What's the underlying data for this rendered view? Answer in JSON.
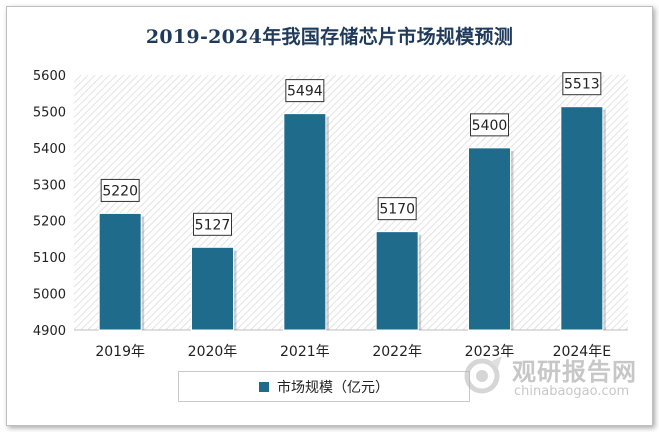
{
  "chart_data": {
    "type": "bar",
    "title": "2019-2024年我国存储芯片市场规模预测",
    "categories": [
      "2019年",
      "2020年",
      "2021年",
      "2022年",
      "2023年",
      "2024年E"
    ],
    "series": [
      {
        "name": "市场规模（亿元）",
        "values": [
          5220,
          5127,
          5494,
          5170,
          5400,
          5513
        ]
      }
    ],
    "ylim": [
      4900,
      5600
    ],
    "yticks": [
      4900,
      5000,
      5100,
      5200,
      5300,
      5400,
      5500,
      5600
    ],
    "xlabel": "",
    "ylabel": "",
    "legend": "bottom",
    "grid": false,
    "bar_color": "#1e6b8c"
  },
  "watermark": {
    "cn": "观研报告网",
    "en": "chinabaogao.com"
  }
}
